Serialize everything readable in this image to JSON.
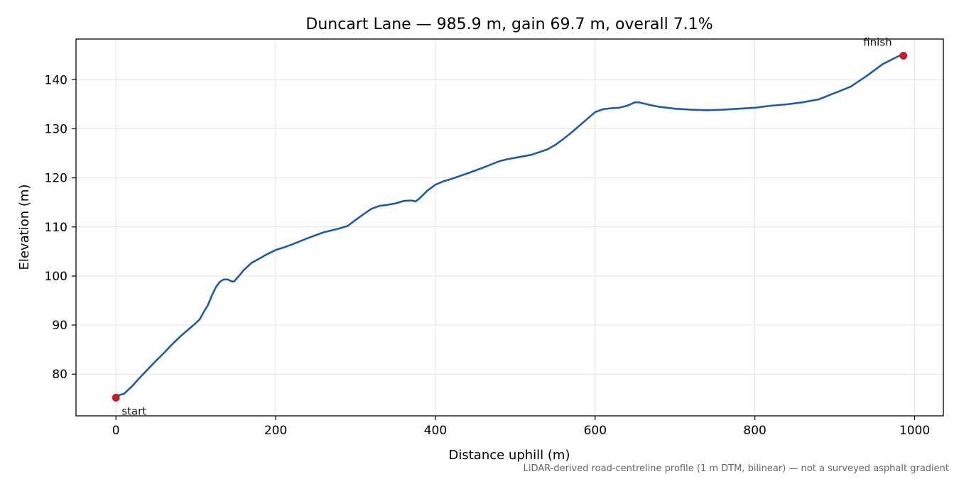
{
  "chart_data": {
    "type": "line",
    "title": "Duncart Lane — 985.9 m, gain 69.7 m, overall 7.1%",
    "xlabel": "Distance uphill (m)",
    "ylabel": "Elevation (m)",
    "xlim": [
      -50,
      1036
    ],
    "ylim": [
      71.5,
      148.3
    ],
    "xticks": [
      0,
      200,
      400,
      600,
      800,
      1000
    ],
    "yticks": [
      80,
      90,
      100,
      110,
      120,
      130,
      140
    ],
    "grid": true,
    "footnote": "LiDAR-derived road-centreline profile (1 m DTM, bilinear) — not a surveyed asphalt gradient",
    "line_color": "#1f5aa6",
    "marker_color": "#c41e2a",
    "series": [
      {
        "x": [
          0,
          10,
          20,
          30,
          40,
          50,
          55,
          60,
          70,
          75,
          80,
          90,
          100,
          105,
          110,
          115,
          120,
          125,
          130,
          135,
          140,
          145,
          148,
          150,
          155,
          160,
          170,
          180,
          190,
          200,
          210,
          220,
          240,
          260,
          280,
          290,
          300,
          310,
          320,
          330,
          340,
          350,
          360,
          370,
          375,
          380,
          390,
          400,
          410,
          420,
          440,
          460,
          480,
          490,
          500,
          520,
          540,
          550,
          560,
          570,
          580,
          590,
          600,
          610,
          620,
          630,
          640,
          650,
          655,
          660,
          670,
          680,
          700,
          720,
          740,
          760,
          780,
          800,
          820,
          840,
          860,
          880,
          900,
          920,
          940,
          960,
          986
        ],
        "y": [
          75.5,
          76.0,
          77.5,
          79.3,
          81.0,
          82.7,
          83.5,
          84.3,
          86.0,
          86.8,
          87.6,
          89.0,
          90.4,
          91.2,
          92.7,
          94.0,
          96.0,
          97.7,
          98.8,
          99.3,
          99.3,
          98.9,
          98.9,
          99.3,
          100.2,
          101.2,
          102.7,
          103.6,
          104.5,
          105.3,
          105.8,
          106.4,
          107.7,
          108.9,
          109.7,
          110.2,
          111.4,
          112.6,
          113.7,
          114.3,
          114.5,
          114.8,
          115.3,
          115.4,
          115.2,
          115.8,
          117.4,
          118.6,
          119.3,
          119.8,
          120.9,
          122.1,
          123.4,
          123.8,
          124.1,
          124.7,
          125.8,
          126.7,
          127.9,
          129.2,
          130.6,
          132.0,
          133.4,
          134.0,
          134.2,
          134.3,
          134.7,
          135.4,
          135.4,
          135.2,
          134.8,
          134.5,
          134.1,
          133.9,
          133.8,
          133.9,
          134.1,
          134.3,
          134.7,
          135.0,
          135.4,
          136.0,
          137.3,
          138.6,
          140.8,
          143.2,
          145.3
        ]
      }
    ],
    "annotations": [
      {
        "label": "start",
        "x": 0,
        "y": 75.2
      },
      {
        "label": "finish",
        "x": 985.9,
        "y": 144.9
      }
    ]
  }
}
